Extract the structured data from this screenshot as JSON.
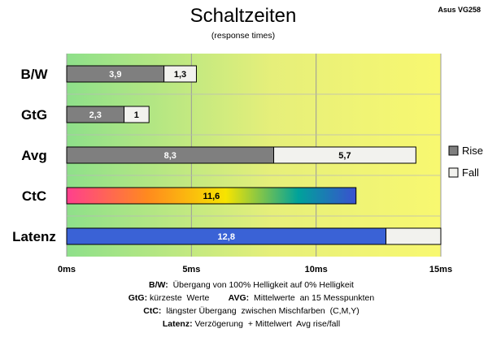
{
  "chart_data": {
    "type": "bar",
    "orientation": "horizontal",
    "stacked": true,
    "title": "Schaltzeiten",
    "subtitle": "(response times)",
    "corner_label": "Asus VG258",
    "categories": [
      "B/W",
      "GtG",
      "Avg",
      "CtC",
      "Latenz"
    ],
    "series": [
      {
        "name": "Rise",
        "values": [
          3.9,
          2.3,
          8.3,
          11.6,
          12.8
        ],
        "labels": [
          "3,9",
          "2,3",
          "8,3",
          "11,6",
          "12,8"
        ]
      },
      {
        "name": "Fall",
        "values": [
          1.3,
          1,
          5.7,
          0,
          2.2
        ],
        "labels": [
          "1,3",
          "1",
          "5,7",
          "",
          ""
        ]
      }
    ],
    "xlim": [
      0,
      15
    ],
    "xticks": [
      0,
      5,
      10,
      15
    ],
    "xtick_labels": [
      "0ms",
      "5ms",
      "10ms",
      "15ms"
    ],
    "grid": true,
    "legend": "right",
    "colors": {
      "rise": "#7f7f7f",
      "fall": "#f2f2ee",
      "latenz_rise": "#3a62d6",
      "ctc_gradient": [
        "#ff3f8e",
        "#ff8a1e",
        "#f7e400",
        "#00a29a",
        "#3a50d0"
      ],
      "background_gradient": [
        "#8ee08a",
        "#e6ef7a",
        "#f8f870"
      ]
    }
  },
  "notes": [
    {
      "parts": [
        {
          "k": "B/W:",
          "t": "  Übergang von 100% Helligkeit auf 0% Helligkeit"
        }
      ]
    },
    {
      "parts": [
        {
          "k": "GtG:",
          "t": " kürzeste  Werte        "
        },
        {
          "k": "AVG:",
          "t": "  Mittelwerte  an 15 Messpunkten"
        }
      ]
    },
    {
      "parts": [
        {
          "k": "CtC:",
          "t": "  längster Übergang  zwischen Mischfarben  (C,M,Y)"
        }
      ]
    },
    {
      "parts": [
        {
          "k": "Latenz:",
          "t": " Verzögerung  + Mittelwert  Avg rise/fall"
        }
      ]
    }
  ]
}
